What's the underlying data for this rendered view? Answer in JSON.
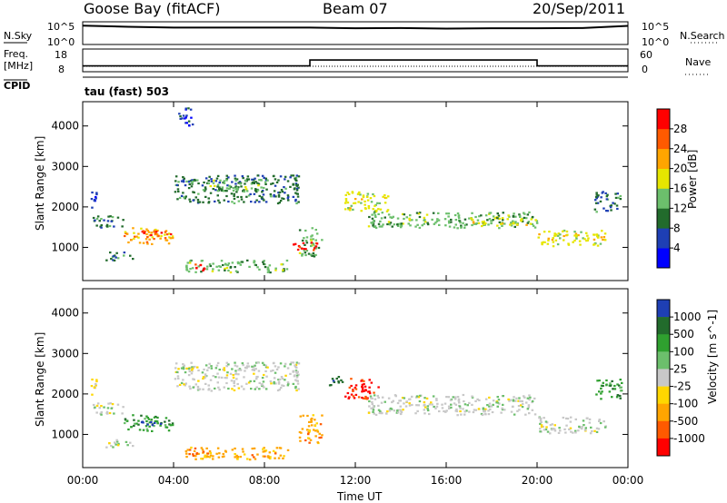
{
  "header": {
    "site": "Goose Bay (fitACF)",
    "beam": "Beam 07",
    "date": "20/Sep/2011"
  },
  "panels": {
    "nsky": {
      "left_label": "N.Sky",
      "left_ticks": [
        "10^5",
        "10^0"
      ],
      "right_label": "N.Search",
      "right_ticks": [
        "10^5",
        "10^0"
      ]
    },
    "freq": {
      "left_label_1": "Freq.",
      "left_label_2": "[MHz]",
      "left_ticks": [
        "18",
        "8"
      ],
      "right_label": "Nave",
      "right_ticks": [
        "60",
        "0"
      ]
    },
    "cpid": {
      "label": "CPID",
      "program_text": "tau (fast) 503"
    }
  },
  "chart_data": [
    {
      "type": "line",
      "name": "N.Sky / N.Search",
      "y_scale": "log",
      "ylim": [
        1,
        100000
      ],
      "x": [
        "00:00",
        "02:00",
        "04:00",
        "06:00",
        "08:00",
        "10:00",
        "12:00",
        "14:00",
        "16:00",
        "18:00",
        "20:00",
        "22:00",
        "24:00"
      ],
      "values": [
        30000,
        15000,
        9000,
        9000,
        9000,
        9000,
        6000,
        7000,
        5000,
        6000,
        6000,
        7000,
        25000
      ]
    },
    {
      "type": "line",
      "name": "Freq. / Nave",
      "series": [
        {
          "name": "Nave",
          "x": [
            "00:00",
            "10:00",
            "10:00",
            "20:00",
            "20:00",
            "24:00"
          ],
          "values": [
            14,
            14,
            31,
            31,
            14,
            14
          ],
          "ylim": [
            0,
            60
          ]
        },
        {
          "name": "Freq.",
          "x": [
            "00:00",
            "24:00"
          ],
          "values": [
            10.5,
            10.5
          ],
          "ylim": [
            8,
            18
          ]
        }
      ]
    },
    {
      "type": "heatmap",
      "name": "Power",
      "xlabel": "",
      "ylabel": "Slant Range [km]",
      "x_range_hours": [
        0,
        24
      ],
      "ylim": [
        180,
        4600
      ],
      "y_ticks": [
        1000,
        2000,
        3000,
        4000
      ],
      "colorbar": {
        "label": "Power [dB]",
        "ticks": [
          "4",
          "8",
          "12",
          "16",
          "20",
          "24",
          "28"
        ],
        "colors": [
          "#0000ff",
          "#1e3fb4",
          "#226b2c",
          "#6cbf6c",
          "#e6e600",
          "#ffa500",
          "#ff5a00",
          "#ff0000"
        ]
      },
      "echo_regions_hours_km": [
        {
          "t0": 0.3,
          "t1": 0.7,
          "r0": 2000,
          "r1": 2400,
          "level": 1
        },
        {
          "t0": 0.4,
          "t1": 1.8,
          "r0": 1500,
          "r1": 1800,
          "level": 2
        },
        {
          "t0": 1.8,
          "t1": 4.0,
          "r0": 1100,
          "r1": 1500,
          "level": 5
        },
        {
          "t0": 2.5,
          "t1": 4.0,
          "r0": 1300,
          "r1": 1450,
          "level": 7
        },
        {
          "t0": 1.0,
          "t1": 2.2,
          "r0": 700,
          "r1": 900,
          "level": 2
        },
        {
          "t0": 4.0,
          "t1": 9.5,
          "r0": 2100,
          "r1": 2800,
          "level": 2
        },
        {
          "t0": 5.5,
          "t1": 8.0,
          "r0": 2400,
          "r1": 2700,
          "level": 3
        },
        {
          "t0": 4.5,
          "t1": 9.0,
          "r0": 400,
          "r1": 700,
          "level": 3
        },
        {
          "t0": 4.8,
          "t1": 5.5,
          "r0": 450,
          "r1": 600,
          "level": 7
        },
        {
          "t0": 9.5,
          "t1": 10.5,
          "r0": 800,
          "r1": 1500,
          "level": 3
        },
        {
          "t0": 9.0,
          "t1": 10.3,
          "r0": 950,
          "r1": 1150,
          "level": 7
        },
        {
          "t0": 11.5,
          "t1": 13.5,
          "r0": 1900,
          "r1": 2400,
          "level": 4
        },
        {
          "t0": 12.5,
          "t1": 20.0,
          "r0": 1500,
          "r1": 1900,
          "level": 3
        },
        {
          "t0": 17.0,
          "t1": 20.0,
          "r0": 1550,
          "r1": 1750,
          "level": 4
        },
        {
          "t0": 20.0,
          "t1": 23.0,
          "r0": 1050,
          "r1": 1450,
          "level": 4
        },
        {
          "t0": 22.5,
          "t1": 23.7,
          "r0": 1900,
          "r1": 2400,
          "level": 2
        },
        {
          "t0": 4.2,
          "t1": 4.8,
          "r0": 4000,
          "r1": 4500,
          "level": 1
        }
      ]
    },
    {
      "type": "heatmap",
      "name": "Velocity",
      "xlabel": "Time UT",
      "ylabel": "Slant Range [km]",
      "x_ticks": [
        "00:00",
        "04:00",
        "08:00",
        "12:00",
        "16:00",
        "20:00",
        "00:00"
      ],
      "x_range_hours": [
        0,
        24
      ],
      "ylim": [
        180,
        4600
      ],
      "y_ticks": [
        1000,
        2000,
        3000,
        4000
      ],
      "colorbar": {
        "label": "Velocity [m s^-1]",
        "ticks": [
          "1000",
          "500",
          "100",
          "25",
          "-25",
          "-100",
          "-500",
          "-1000"
        ],
        "colors": [
          "#1e3fb4",
          "#226b2c",
          "#2fa02f",
          "#6cbf6c",
          "#c8c8c8",
          "#ffd700",
          "#ffa500",
          "#ff5a00",
          "#ff0000"
        ]
      },
      "echo_regions_hours_km": [
        {
          "t0": 0.3,
          "t1": 0.7,
          "r0": 2000,
          "r1": 2400,
          "level": 5
        },
        {
          "t0": 0.4,
          "t1": 1.8,
          "r0": 1500,
          "r1": 1800,
          "level": 4
        },
        {
          "t0": 1.8,
          "t1": 4.0,
          "r0": 1100,
          "r1": 1500,
          "level": 2
        },
        {
          "t0": 2.5,
          "t1": 3.5,
          "r0": 1250,
          "r1": 1350,
          "level": 0
        },
        {
          "t0": 1.0,
          "t1": 2.2,
          "r0": 700,
          "r1": 900,
          "level": 4
        },
        {
          "t0": 4.0,
          "t1": 9.5,
          "r0": 2100,
          "r1": 2800,
          "level": 4
        },
        {
          "t0": 4.5,
          "t1": 9.0,
          "r0": 400,
          "r1": 700,
          "level": 6
        },
        {
          "t0": 4.8,
          "t1": 5.5,
          "r0": 450,
          "r1": 600,
          "level": 7
        },
        {
          "t0": 9.5,
          "t1": 10.5,
          "r0": 800,
          "r1": 1500,
          "level": 6
        },
        {
          "t0": 11.5,
          "t1": 13.0,
          "r0": 1900,
          "r1": 2400,
          "level": 8
        },
        {
          "t0": 12.5,
          "t1": 20.0,
          "r0": 1500,
          "r1": 2000,
          "level": 4
        },
        {
          "t0": 20.0,
          "t1": 23.0,
          "r0": 1050,
          "r1": 1450,
          "level": 4
        },
        {
          "t0": 22.5,
          "t1": 23.7,
          "r0": 1900,
          "r1": 2400,
          "level": 2
        },
        {
          "t0": 10.8,
          "t1": 11.4,
          "r0": 2200,
          "r1": 2500,
          "level": 1
        }
      ]
    }
  ]
}
